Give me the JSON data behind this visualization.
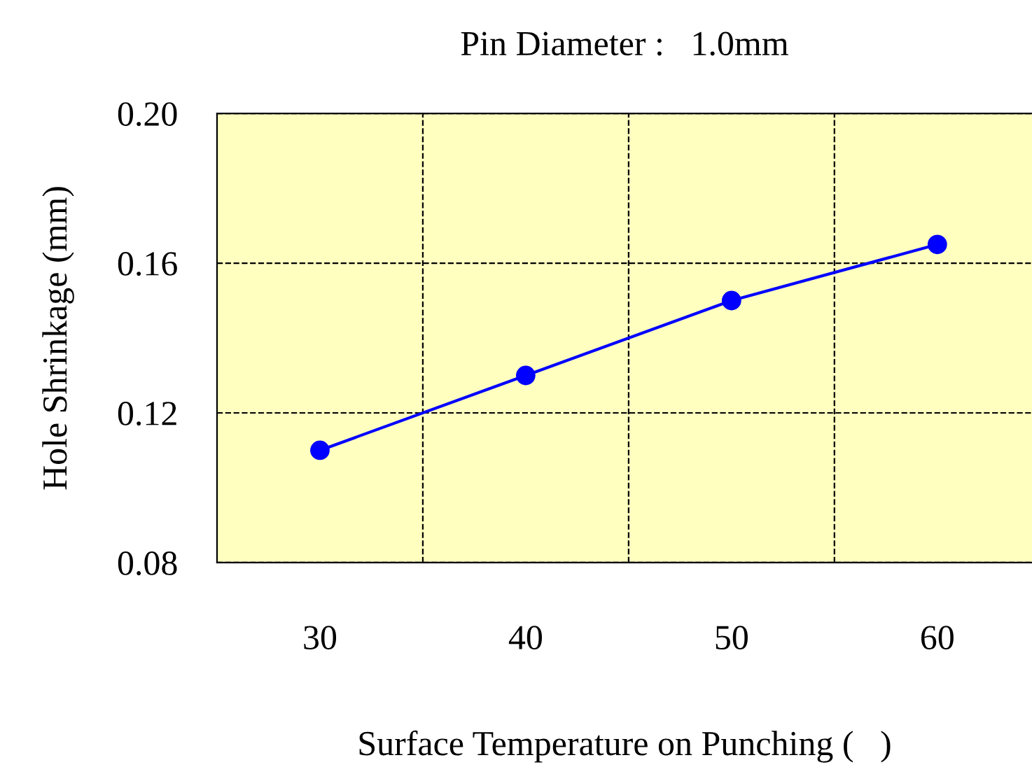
{
  "chart_data": {
    "type": "line",
    "title": "Pin Diameter :   1.0mm",
    "xlabel": "Surface Temperature on Punching (   )",
    "ylabel": "Hole Shrinkage (mm)",
    "x": [
      30,
      40,
      50,
      60
    ],
    "series": [
      {
        "color": "#0000ff",
        "values": [
          0.11,
          0.13,
          0.15,
          0.165
        ]
      }
    ],
    "xlim": [
      25,
      64.6
    ],
    "xticks": [
      30,
      40,
      50,
      60
    ],
    "ylim": [
      0.08,
      0.2
    ],
    "yticks": [
      0.08,
      0.12,
      0.16,
      {
        "value": 0.2,
        "label": "0.20"
      }
    ],
    "ref_lines": [
      {
        "axis": "x",
        "value": 35,
        "color": "#000000",
        "line_style": "dashed"
      },
      {
        "axis": "x",
        "value": 45,
        "color": "#000000",
        "line_style": "dashed"
      },
      {
        "axis": "x",
        "value": 55,
        "color": "#000000",
        "line_style": "dashed"
      }
    ],
    "grid": "y",
    "marker": "circle",
    "line_style": "solid"
  }
}
